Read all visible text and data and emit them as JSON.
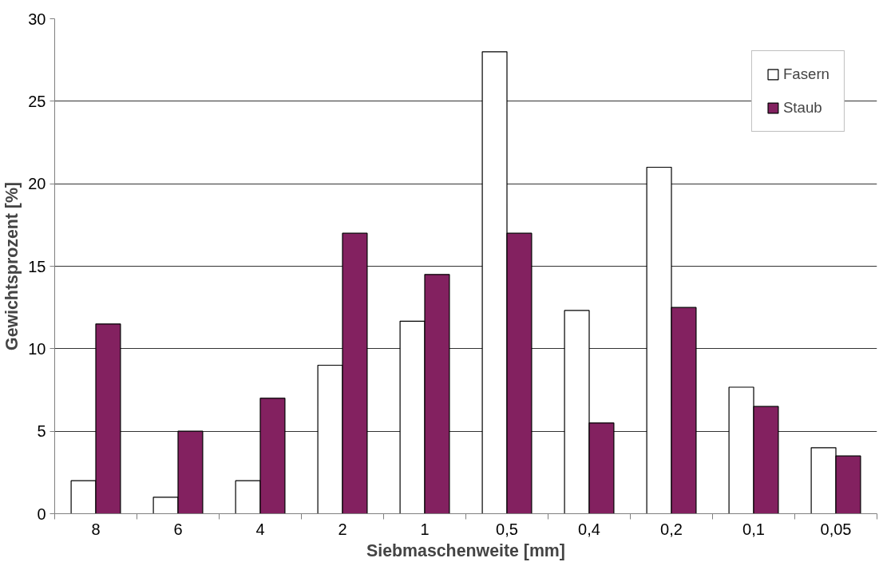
{
  "chart_data": {
    "type": "bar",
    "xlabel": "Siebmaschenweite [mm]",
    "ylabel": "Gewichtsprozent [%]",
    "categories": [
      "8",
      "6",
      "4",
      "2",
      "1",
      "0,5",
      "0,4",
      "0,2",
      "0,1",
      "0,05"
    ],
    "series": [
      {
        "name": "Fasern",
        "color": "#ffffff",
        "values": [
          2,
          1,
          2,
          9,
          11.67,
          28,
          12.32,
          21,
          7.67,
          4
        ]
      },
      {
        "name": "Staub",
        "color": "#832160",
        "values": [
          11.5,
          5,
          7,
          17,
          14.5,
          17,
          5.5,
          12.5,
          6.5,
          3.5
        ]
      }
    ],
    "ylim": [
      0,
      30
    ],
    "yticks": [
      0,
      5,
      10,
      15,
      20,
      25,
      30
    ],
    "grid": "y",
    "legend": "top right"
  }
}
